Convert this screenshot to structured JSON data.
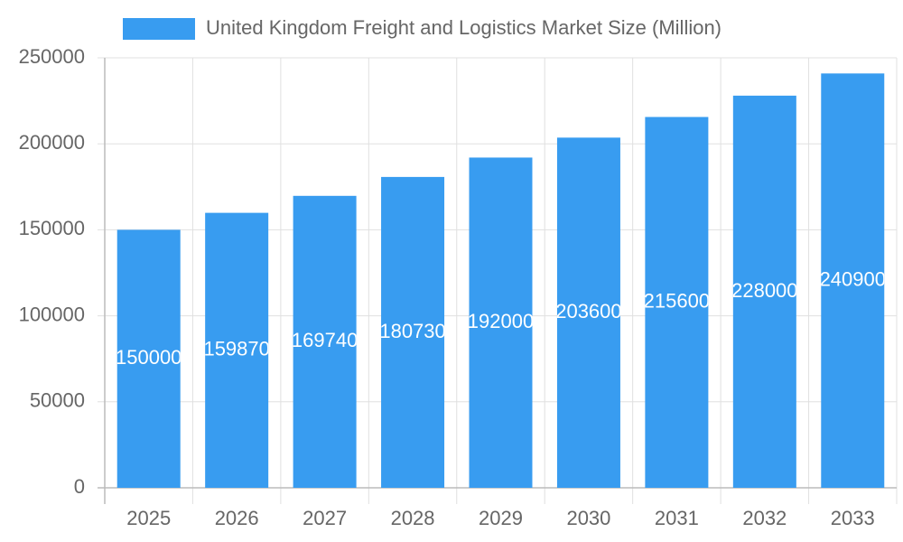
{
  "chart_data": {
    "type": "bar",
    "categories": [
      "2025",
      "2026",
      "2027",
      "2028",
      "2029",
      "2030",
      "2031",
      "2032",
      "2033"
    ],
    "series": [
      {
        "name": "United Kingdom Freight and Logistics Market Size (Million)",
        "color": "#389cf0",
        "values": [
          150000,
          159870,
          169740,
          180730,
          192000,
          203600,
          215600,
          228000,
          240900
        ]
      }
    ],
    "ylim": [
      0,
      250000
    ],
    "yticks": [
      0,
      50000,
      100000,
      150000,
      200000,
      250000
    ],
    "grid": true
  }
}
